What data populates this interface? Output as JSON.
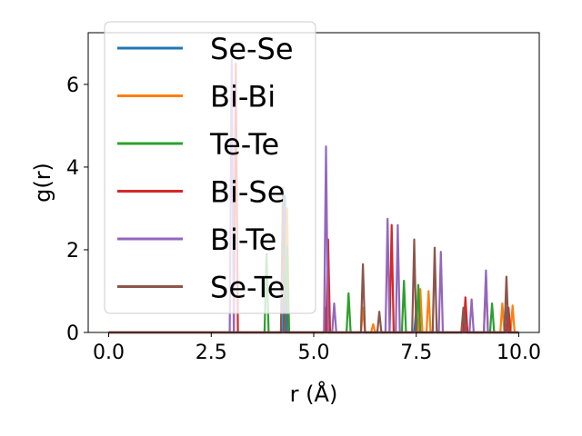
{
  "chart_data": {
    "type": "line",
    "xlabel": "r (Å)",
    "ylabel": "g(r)",
    "xlim": [
      -0.5,
      10.5
    ],
    "ylim": [
      0,
      7.25
    ],
    "xticks": [
      0.0,
      2.5,
      5.0,
      7.5,
      10.0
    ],
    "xtick_labels": [
      "0.0",
      "2.5",
      "5.0",
      "7.5",
      "10.0"
    ],
    "yticks": [
      0,
      2,
      4,
      6
    ],
    "ytick_labels": [
      "0",
      "2",
      "4",
      "6"
    ],
    "grid": false,
    "legend_position": "top-left",
    "series": [
      {
        "name": "Se-Se",
        "color": "#1f77b4",
        "peaks": [
          [
            4.3,
            3.3
          ],
          [
            5.3,
            0.6
          ],
          [
            7.5,
            0.55
          ],
          [
            8.7,
            0.5
          ],
          [
            9.7,
            0.6
          ]
        ]
      },
      {
        "name": "Bi-Bi",
        "color": "#ff7f0e",
        "peaks": [
          [
            4.35,
            3.0
          ],
          [
            6.2,
            0.6
          ],
          [
            6.45,
            0.2
          ],
          [
            7.6,
            1.05
          ],
          [
            7.8,
            1.0
          ],
          [
            9.6,
            0.7
          ],
          [
            9.85,
            0.65
          ]
        ]
      },
      {
        "name": "Te-Te",
        "color": "#2ca02c",
        "peaks": [
          [
            3.85,
            1.9
          ],
          [
            4.35,
            2.1
          ],
          [
            5.85,
            0.95
          ],
          [
            7.2,
            1.25
          ],
          [
            7.55,
            1.15
          ],
          [
            9.35,
            0.7
          ]
        ]
      },
      {
        "name": "Bi-Se",
        "color": "#d62728",
        "peaks": [
          [
            3.1,
            6.5
          ],
          [
            5.35,
            2.25
          ],
          [
            6.9,
            2.6
          ],
          [
            8.7,
            0.85
          ],
          [
            9.2,
            1.35
          ],
          [
            9.75,
            0.6
          ]
        ]
      },
      {
        "name": "Bi-Te",
        "color": "#9467bd",
        "peaks": [
          [
            3.0,
            6.6
          ],
          [
            5.3,
            4.5
          ],
          [
            5.5,
            0.7
          ],
          [
            6.8,
            2.75
          ],
          [
            7.05,
            2.6
          ],
          [
            8.1,
            1.95
          ],
          [
            8.85,
            0.8
          ],
          [
            9.2,
            1.5
          ]
        ]
      },
      {
        "name": "Se-Te",
        "color": "#8c564b",
        "peaks": [
          [
            4.25,
            3.5
          ],
          [
            6.2,
            1.65
          ],
          [
            6.6,
            0.5
          ],
          [
            7.45,
            2.25
          ],
          [
            7.95,
            2.05
          ],
          [
            8.65,
            0.6
          ],
          [
            9.7,
            1.35
          ]
        ]
      }
    ]
  }
}
